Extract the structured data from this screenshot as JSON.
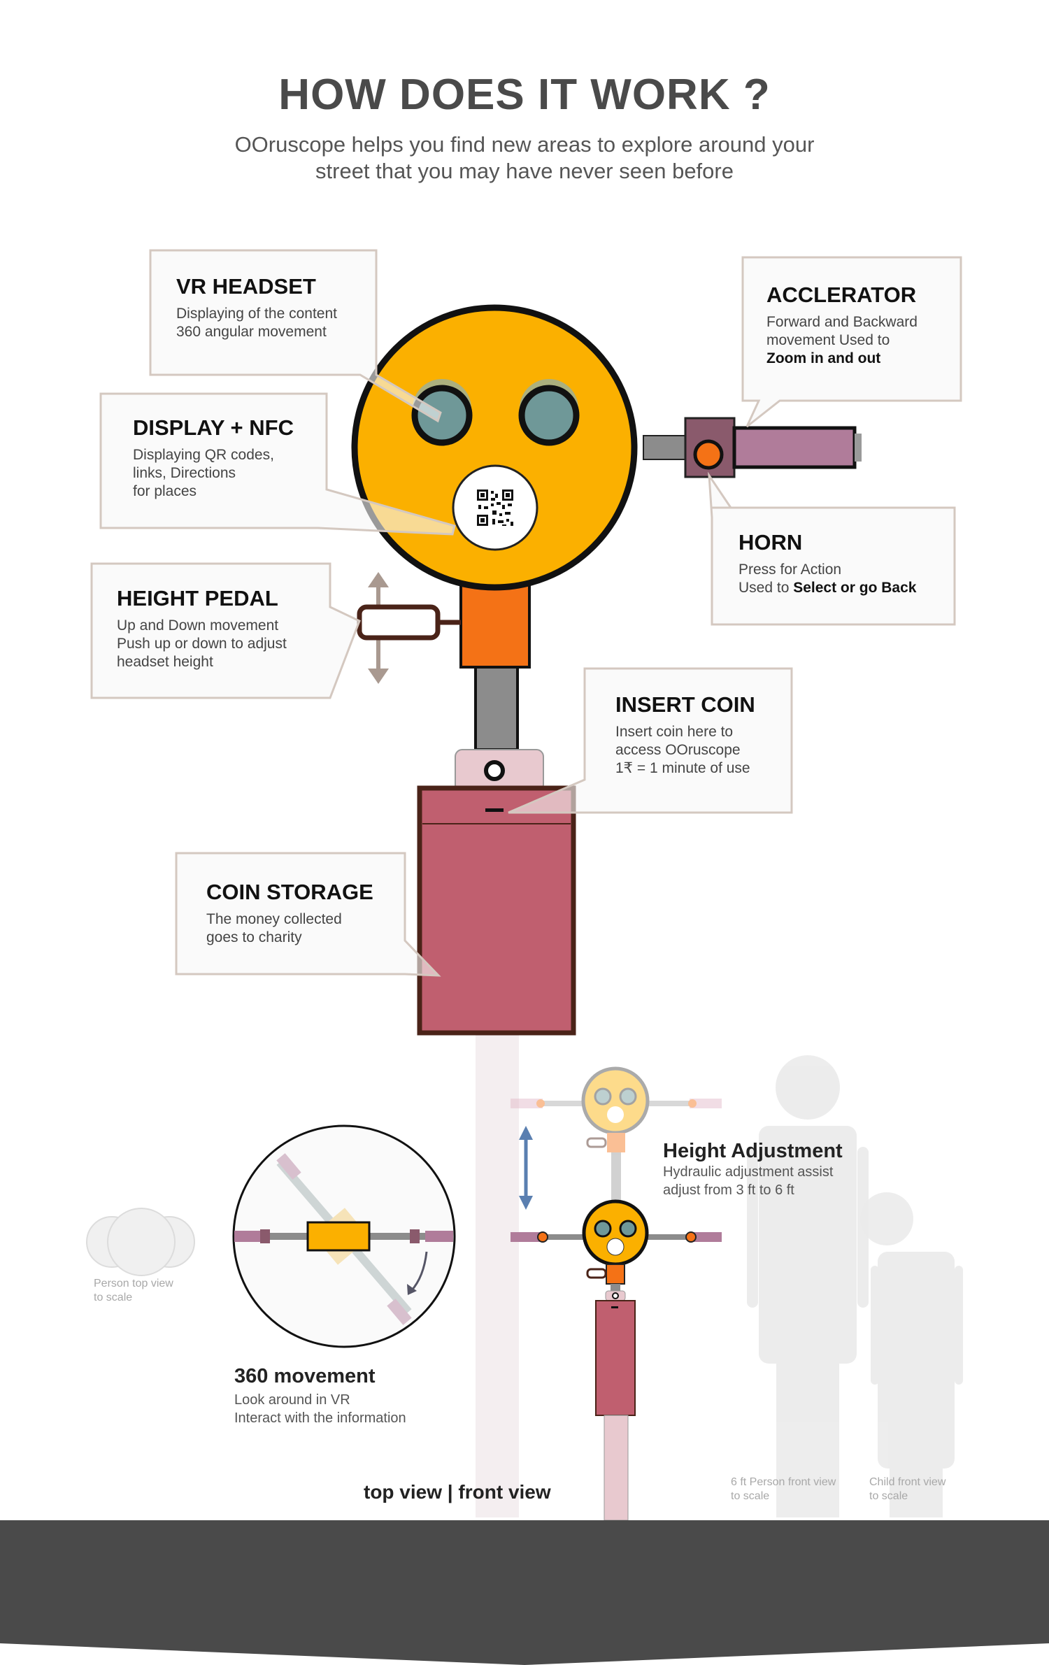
{
  "header": {
    "title": "HOW DOES IT WORK ?",
    "subtitle_line1": "OOruscope helps you find new areas to explore around your",
    "subtitle_line2": "street that you may have never seen before"
  },
  "callouts": {
    "vr_headset": {
      "title": "VR HEADSET",
      "line1": "Displaying of the content",
      "line2": "360 angular movement"
    },
    "display_nfc": {
      "title": "DISPLAY + NFC",
      "line1": "Displaying QR codes,",
      "line2": "links, Directions",
      "line3": "for places"
    },
    "height_pedal": {
      "title": "HEIGHT PEDAL",
      "line1": "Up and Down movement",
      "line2": "Push up or down to adjust",
      "line3": "headset height"
    },
    "accelerator": {
      "title": "ACCLERATOR",
      "line1": "Forward and Backward",
      "line2": "movement Used to",
      "line3_bold": "Zoom in and out"
    },
    "horn": {
      "title": "HORN",
      "line1": "Press for Action",
      "line2_prefix": "Used to ",
      "line2_bold": "Select or go Back"
    },
    "insert_coin": {
      "title": "INSERT COIN",
      "line1": "Insert coin here to",
      "line2": "access OOruscope",
      "line3": "1₹ = 1 minute of use"
    },
    "coin_storage": {
      "title": "COIN STORAGE",
      "line1": "The money collected",
      "line2": "goes to charity"
    }
  },
  "bottom": {
    "height_adjustment": {
      "title": "Height Adjustment",
      "line1": "Hydraulic adjustment assist",
      "line2": "adjust from 3 ft to 6 ft"
    },
    "movement_360": {
      "title": "360 movement",
      "line1": "Look around in VR",
      "line2": "Interact with the information"
    },
    "view_label": "top view | front view",
    "person_top": {
      "line1": "Person top view",
      "line2": "to scale"
    },
    "person_front": {
      "line1": "6 ft Person front view",
      "line2": "to scale"
    },
    "child_front": {
      "line1": "Child front view",
      "line2": "to scale"
    }
  },
  "colors": {
    "head": "#fbb000",
    "outline": "#111111",
    "lens": "#6f9898",
    "neck": "#f47216",
    "pole": "#8c8c8c",
    "coin_top": "#e8c9cf",
    "storage": "#c05f6f",
    "storage_border": "#4a2318",
    "accelerator": "#b07c9a",
    "horn_box": "#8a5a6c",
    "horn_button": "#f47216",
    "ground": "#4a4a4a",
    "callout_border": "#d4c8c0",
    "callout_bg": "#f7f7f7"
  },
  "icons": [
    "qr-code-icon",
    "up-down-arrow-icon",
    "rotate-arrow-icon"
  ]
}
